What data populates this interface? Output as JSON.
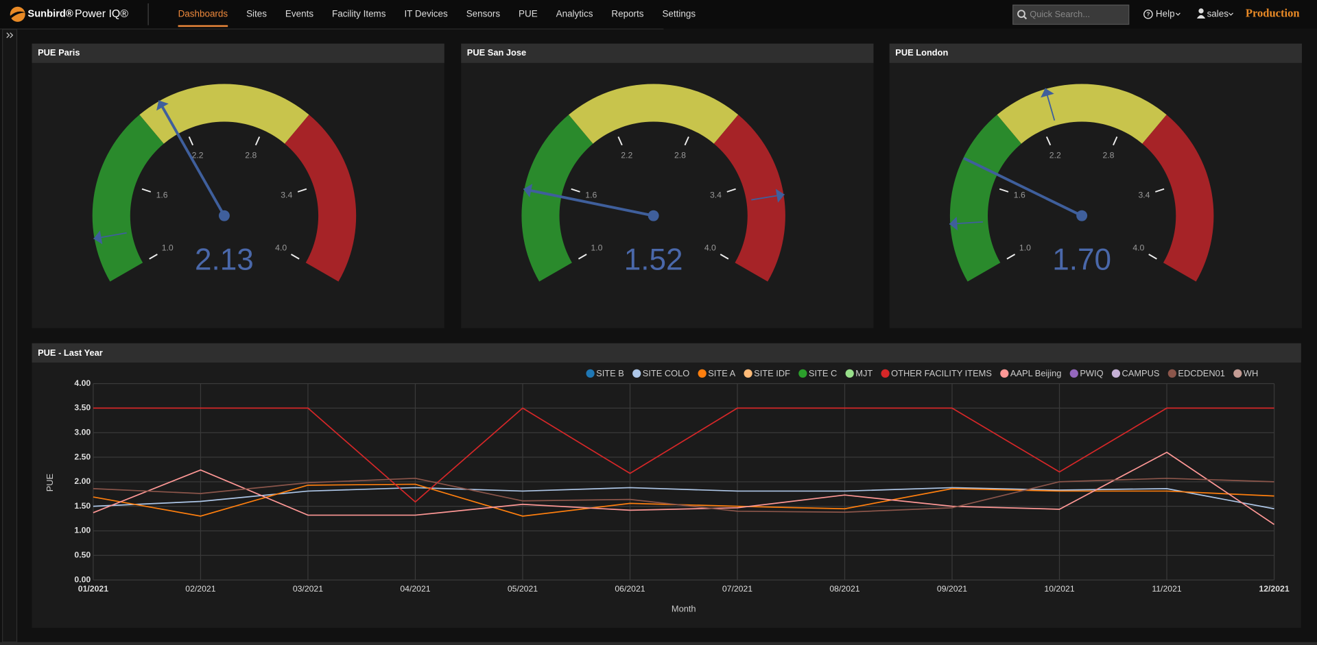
{
  "nav": {
    "brand": "Sunbird®",
    "product": "Power IQ®",
    "menu": [
      "Dashboards",
      "Sites",
      "Events",
      "Facility Items",
      "IT Devices",
      "Sensors",
      "PUE",
      "Analytics",
      "Reports",
      "Settings"
    ],
    "active": 0,
    "search_placeholder": "Quick Search...",
    "help": "Help",
    "user": "sales",
    "environment": "Production"
  },
  "gauge_scale": {
    "range": [
      1,
      4
    ],
    "ticks": [
      {
        "value": 1,
        "label": "1.0"
      },
      1.6,
      2.2,
      2.8,
      3.4,
      {
        "value": 4,
        "label": "4.0"
      }
    ],
    "bands": [
      {
        "from": 1,
        "to": 2,
        "color": "#2a8a2c"
      },
      {
        "from": 2,
        "to": 3,
        "color": "#c8c44c"
      },
      {
        "from": 3,
        "to": 4,
        "color": "#a62327"
      }
    ],
    "needle_color": "#3f5f9c"
  },
  "gauges": [
    {
      "title": "PUE Paris",
      "value": 2.13,
      "min": 1.25,
      "max": 2.13
    },
    {
      "title": "PUE San Jose",
      "value": 1.52,
      "min": 1.52,
      "max": 3.51
    },
    {
      "title": "PUE London",
      "value": 1.7,
      "value_label": "1.70",
      "min": 1.33,
      "max": 2.3
    }
  ],
  "chart_data": {
    "type": "line",
    "title": "PUE - Last Year",
    "x_label": "Month",
    "y_label": "PUE",
    "categories": [
      "01/2021",
      "02/2021",
      "03/2021",
      "04/2021",
      "05/2021",
      "06/2021",
      "07/2021",
      "08/2021",
      "09/2021",
      "10/2021",
      "11/2021",
      "12/2021"
    ],
    "ylim": [
      0,
      4
    ],
    "yticks": [
      {
        "value": 0,
        "label": "0.00"
      },
      {
        "value": 0.5,
        "label": "0.50"
      },
      {
        "value": 1,
        "label": "1.00"
      },
      {
        "value": 1.5,
        "label": "1.50"
      },
      {
        "value": 2,
        "label": "2.00"
      },
      {
        "value": 2.5,
        "label": "2.50"
      },
      {
        "value": 3,
        "label": "3.00"
      },
      {
        "value": 3.5,
        "label": "3.50"
      },
      {
        "value": 4,
        "label": "4.00"
      }
    ],
    "grid": true,
    "legend": "top-right",
    "series": [
      {
        "name": "SITE B",
        "color": "#1f77b4",
        "values": [
          null,
          null,
          null,
          null,
          null,
          null,
          null,
          null,
          null,
          null,
          null,
          null
        ]
      },
      {
        "name": "SITE COLO",
        "color": "#aec7e8",
        "values": [
          1.5,
          1.6,
          1.81,
          1.88,
          1.81,
          1.88,
          1.81,
          1.81,
          1.88,
          1.83,
          1.86,
          1.45
        ]
      },
      {
        "name": "SITE A",
        "color": "#ff7f0e",
        "values": [
          1.69,
          1.3,
          1.93,
          1.95,
          1.3,
          1.56,
          1.5,
          1.45,
          1.86,
          1.81,
          1.81,
          1.71
        ]
      },
      {
        "name": "SITE IDF",
        "color": "#ffbb78",
        "values": [
          null,
          null,
          null,
          null,
          null,
          null,
          null,
          null,
          null,
          null,
          null,
          null
        ]
      },
      {
        "name": "SITE C",
        "color": "#2ca02c",
        "values": [
          null,
          null,
          null,
          null,
          null,
          null,
          null,
          null,
          null,
          null,
          null,
          null
        ]
      },
      {
        "name": "MJT",
        "color": "#98df8a",
        "values": [
          null,
          null,
          null,
          null,
          null,
          null,
          null,
          null,
          null,
          null,
          null,
          null
        ]
      },
      {
        "name": "OTHER FACILITY ITEMS",
        "color": "#d62728",
        "values": [
          3.5,
          3.5,
          3.5,
          1.59,
          3.5,
          2.17,
          3.5,
          3.5,
          3.5,
          2.2,
          3.5,
          3.5
        ]
      },
      {
        "name": "AAPL Beijing",
        "color": "#ff9896",
        "values": [
          1.37,
          2.24,
          1.32,
          1.32,
          1.54,
          1.42,
          1.47,
          1.73,
          1.5,
          1.44,
          2.6,
          1.13
        ]
      },
      {
        "name": "PWIQ",
        "color": "#9467bd",
        "values": [
          null,
          null,
          null,
          null,
          null,
          null,
          null,
          null,
          null,
          null,
          null,
          null
        ]
      },
      {
        "name": "CAMPUS",
        "color": "#c5b0d5",
        "values": [
          null,
          null,
          null,
          null,
          null,
          null,
          null,
          null,
          null,
          null,
          null,
          null
        ]
      },
      {
        "name": "EDCDEN01",
        "color": "#8c564b",
        "values": [
          1.86,
          1.76,
          1.98,
          2.07,
          1.61,
          1.64,
          1.4,
          1.38,
          1.47,
          2.0,
          2.07,
          2.0
        ]
      },
      {
        "name": "WH",
        "color": "#c49c94",
        "values": [
          null,
          null,
          null,
          null,
          null,
          null,
          null,
          null,
          null,
          null,
          null,
          null
        ]
      }
    ]
  }
}
